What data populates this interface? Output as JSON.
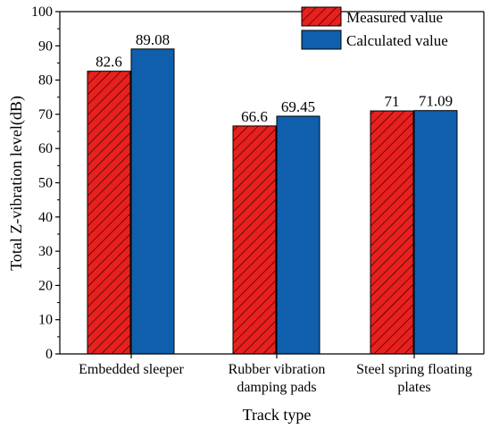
{
  "chart_data": {
    "type": "bar",
    "xlabel": "Track type",
    "ylabel": "Total Z-vibration level(dB)",
    "ylim": [
      0,
      100
    ],
    "yticks": [
      0,
      10,
      20,
      30,
      40,
      50,
      60,
      70,
      80,
      90,
      100
    ],
    "categories": [
      [
        "Embedded sleeper"
      ],
      [
        "Rubber vibration",
        "damping pads"
      ],
      [
        "Steel spring floating",
        "plates"
      ]
    ],
    "series": [
      {
        "name": "Measured value",
        "values": [
          82.6,
          66.6,
          71
        ],
        "labels": [
          "82.6",
          "66.6",
          "71"
        ],
        "color": "#e8201e",
        "pattern": "diagonal-hatch"
      },
      {
        "name": "Calculated value",
        "values": [
          89.08,
          69.45,
          71.09
        ],
        "labels": [
          "89.08",
          "69.45",
          "71.09"
        ],
        "color": "#0f5fad",
        "pattern": "solid"
      }
    ],
    "legend_position": "top-right",
    "grid": false
  }
}
